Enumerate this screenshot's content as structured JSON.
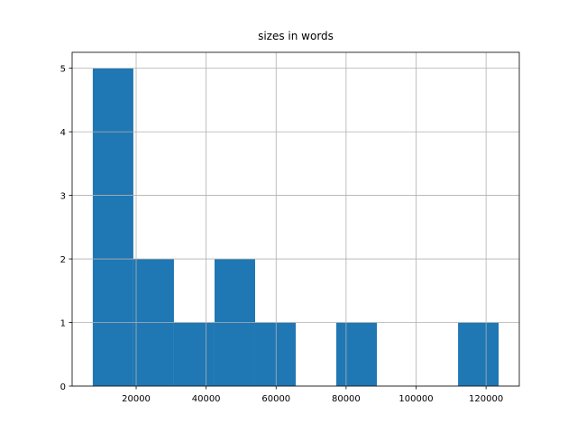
{
  "chart_data": {
    "type": "histogram",
    "title": "sizes in words",
    "bins": [
      7600,
      19200,
      30800,
      42400,
      54000,
      65600,
      77200,
      88800,
      100400,
      112000,
      123600
    ],
    "values": [
      5,
      2,
      1,
      2,
      1,
      0,
      1,
      0,
      0,
      1
    ],
    "color": "#1f77b4",
    "xlim": [
      1700,
      129500
    ],
    "xticks": [
      20000,
      40000,
      60000,
      80000,
      100000,
      120000
    ],
    "ylim": [
      0,
      5.25
    ],
    "yticks": [
      0,
      1,
      2,
      3,
      4,
      5
    ],
    "grid": true
  }
}
